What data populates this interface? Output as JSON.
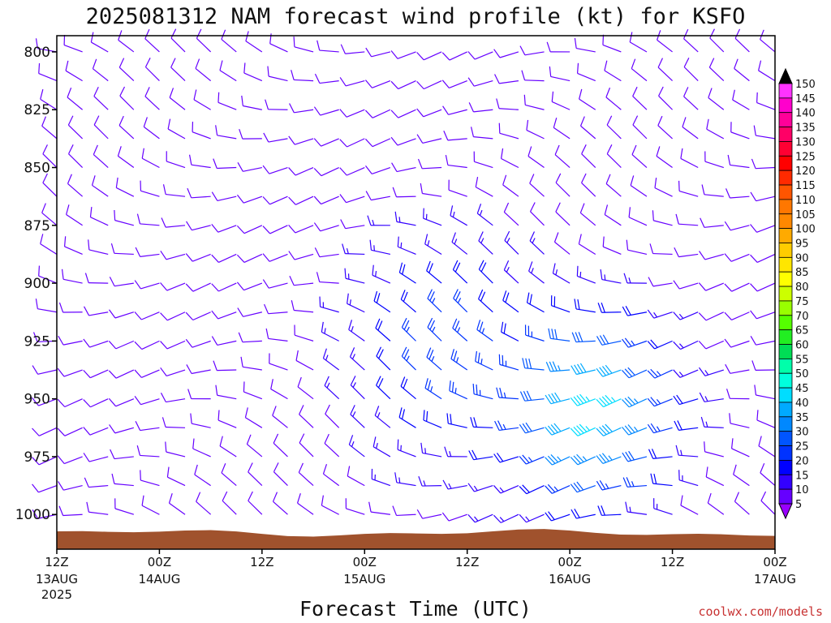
{
  "chart_data": {
    "type": "wind_profile",
    "title": "2025081312 NAM forecast wind profile (kt) for KSFO",
    "xlabel": "Forecast Time (UTC)",
    "credit": "coolwx.com/models",
    "x_ticks": [
      {
        "label": "12Z",
        "sub1": "13AUG",
        "sub2": "2025",
        "hour": 0
      },
      {
        "label": "00Z",
        "sub1": "14AUG",
        "sub2": "",
        "hour": 12
      },
      {
        "label": "12Z",
        "sub1": "",
        "sub2": "",
        "hour": 24
      },
      {
        "label": "00Z",
        "sub1": "15AUG",
        "sub2": "",
        "hour": 36
      },
      {
        "label": "12Z",
        "sub1": "",
        "sub2": "",
        "hour": 48
      },
      {
        "label": "00Z",
        "sub1": "16AUG",
        "sub2": "",
        "hour": 60
      },
      {
        "label": "12Z",
        "sub1": "",
        "sub2": "",
        "hour": 72
      },
      {
        "label": "00Z",
        "sub1": "17AUG",
        "sub2": "",
        "hour": 84
      }
    ],
    "xlim": [
      0,
      84
    ],
    "y_ticks": [
      800,
      825,
      850,
      875,
      900,
      925,
      950,
      975,
      1000
    ],
    "ylim": [
      793,
      1015
    ],
    "pressure_levels": [
      800,
      812.5,
      825,
      837.5,
      850,
      862.5,
      875,
      887.5,
      900,
      912.5,
      925,
      937.5,
      950,
      962.5,
      975,
      987.5,
      1000
    ],
    "colorbar": {
      "labels": [
        150,
        145,
        140,
        135,
        130,
        125,
        120,
        115,
        110,
        105,
        100,
        95,
        90,
        85,
        80,
        75,
        70,
        65,
        60,
        55,
        50,
        45,
        40,
        35,
        30,
        25,
        20,
        15,
        10,
        5
      ],
      "colors": [
        "#ff33ff",
        "#ff00cc",
        "#ff0099",
        "#ff0066",
        "#ff0033",
        "#ff0000",
        "#ff2a00",
        "#ff5500",
        "#ff7700",
        "#ff8800",
        "#ffaa00",
        "#ffcc00",
        "#ffe600",
        "#ffff00",
        "#ccff00",
        "#99ff00",
        "#55ff00",
        "#22ee22",
        "#00dd55",
        "#00ffaa",
        "#00ffdd",
        "#00ddff",
        "#00aaff",
        "#0088ff",
        "#0055ff",
        "#0033ff",
        "#0000ff",
        "#3300ff",
        "#6600ff",
        "#9900ff"
      ],
      "top_arrow": "#000000",
      "bottom_arrow": "#9900ff"
    },
    "terrain_color": "#a0522d",
    "speed_field": {
      "model": "gaussian-bumps",
      "base_kt": 10,
      "bumps": [
        {
          "hour": 64,
          "pressure": 955,
          "amp_kt": 35,
          "sx_h": 9,
          "sy_p": 40
        },
        {
          "hour": 45,
          "pressure": 930,
          "amp_kt": 15,
          "sx_h": 10,
          "sy_p": 50
        }
      ]
    }
  }
}
